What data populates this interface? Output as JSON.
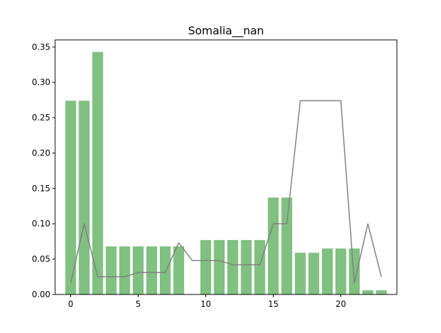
{
  "chart_data": {
    "type": "bar",
    "title": "Somalia__nan",
    "xlabel": "",
    "ylabel": "",
    "xlim": [
      -1.15,
      24.15
    ],
    "ylim": [
      0,
      0.36
    ],
    "x_ticks": [
      0,
      5,
      10,
      15,
      20
    ],
    "y_ticks": [
      0.0,
      0.05,
      0.1,
      0.15,
      0.2,
      0.25,
      0.3,
      0.35
    ],
    "x_tick_labels": [
      "0",
      "5",
      "10",
      "15",
      "20"
    ],
    "y_tick_labels": [
      "0.00",
      "0.05",
      "0.10",
      "0.15",
      "0.20",
      "0.25",
      "0.30",
      "0.35"
    ],
    "grid": false,
    "x": [
      0,
      1,
      2,
      3,
      4,
      5,
      6,
      7,
      8,
      9,
      10,
      11,
      12,
      13,
      14,
      15,
      16,
      17,
      18,
      19,
      20,
      21,
      22,
      23
    ],
    "series": [
      {
        "type": "bar",
        "color": "#80c080",
        "values": [
          0.274,
          0.274,
          0.343,
          0.068,
          0.068,
          0.068,
          0.068,
          0.068,
          0.068,
          0.0,
          0.077,
          0.077,
          0.077,
          0.077,
          0.077,
          0.137,
          0.137,
          0.059,
          0.059,
          0.065,
          0.065,
          0.065,
          0.006,
          0.006
        ]
      },
      {
        "type": "line",
        "color": "#808080",
        "values": [
          0.016,
          0.1,
          0.025,
          0.025,
          0.025,
          0.031,
          0.031,
          0.031,
          0.073,
          0.048,
          0.048,
          0.048,
          0.042,
          0.042,
          0.042,
          0.1,
          0.1,
          0.274,
          0.274,
          0.274,
          0.274,
          0.016,
          0.1,
          0.025
        ]
      }
    ]
  }
}
